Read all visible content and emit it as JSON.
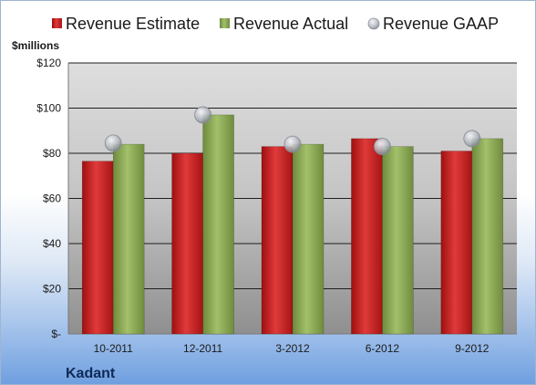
{
  "chart_data": {
    "type": "bar",
    "unit_label": "$millions",
    "company": "Kadant",
    "categories": [
      "10-2011",
      "12-2011",
      "3-2012",
      "6-2012",
      "9-2012"
    ],
    "series": [
      {
        "name": "Revenue Estimate",
        "kind": "bar",
        "color": "#d42a2a",
        "values": [
          76.5,
          80,
          83,
          86.5,
          81
        ]
      },
      {
        "name": "Revenue Actual",
        "kind": "bar",
        "color": "#8fac5a",
        "values": [
          84,
          97,
          84,
          83,
          86.5
        ]
      },
      {
        "name": "Revenue GAAP",
        "kind": "marker",
        "color": "#b8bcc4",
        "values": [
          84.5,
          97,
          84,
          83,
          86.5
        ]
      }
    ],
    "y_ticks": [
      0,
      20,
      40,
      60,
      80,
      100,
      120
    ],
    "y_tick_labels": [
      "$-",
      "$20",
      "$40",
      "$60",
      "$80",
      "$100",
      "$120"
    ],
    "ylim": [
      0,
      120
    ],
    "grid": true,
    "legend_position": "top"
  }
}
